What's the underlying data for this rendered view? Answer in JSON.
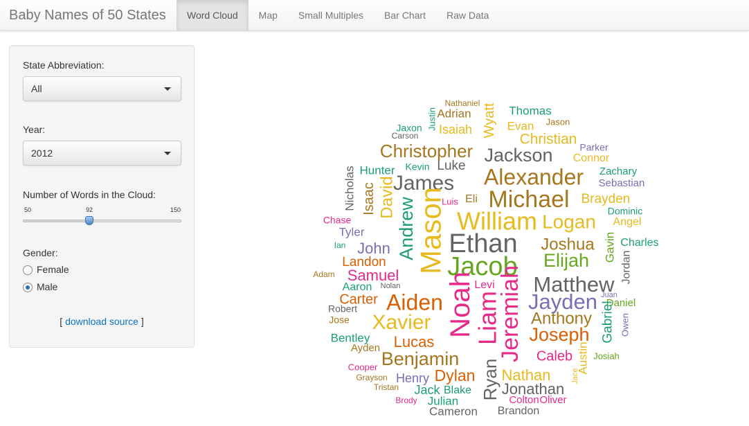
{
  "app": {
    "title": "Baby Names of 50 States"
  },
  "nav": {
    "tabs": [
      {
        "label": "Word Cloud",
        "active": true
      },
      {
        "label": "Map"
      },
      {
        "label": "Small Multiples"
      },
      {
        "label": "Bar Chart"
      },
      {
        "label": "Raw Data"
      }
    ]
  },
  "sidebar": {
    "state": {
      "label": "State Abbreviation:",
      "value": "All"
    },
    "year": {
      "label": "Year:",
      "value": "2012"
    },
    "words": {
      "label": "Number of Words in the Cloud:",
      "min": "50",
      "value": "92",
      "max": "150"
    },
    "gender": {
      "label": "Gender:",
      "options": [
        {
          "label": "Female",
          "checked": false
        },
        {
          "label": "Male",
          "checked": true
        }
      ]
    },
    "source": {
      "open": "[",
      "link": "download source",
      "close": "]"
    }
  },
  "colors": {
    "gray": "#636363",
    "gold": "#e7ba1e",
    "brown": "#a6761d",
    "orange": "#d95f02",
    "pink": "#e7298a",
    "green": "#66a61e",
    "teal": "#1b9e77",
    "purple": "#7570b3"
  },
  "cloud_words": [
    "Nathaniel",
    "Adrian",
    "Justin",
    "Isaiah",
    "Wyatt",
    "Thomas",
    "Evan",
    "Jason",
    "Christian",
    "Jaxon",
    "Carson",
    "Christopher",
    "Jackson",
    "Parker",
    "Connor",
    "Hunter",
    "Kevin",
    "Luke",
    "Alexander",
    "Zachary",
    "Sebastian",
    "Nicholas",
    "Isaac",
    "David",
    "James",
    "Andrew",
    "Mason",
    "Luis",
    "Eli",
    "Michael",
    "Brayden",
    "Dominic",
    "Angel",
    "Chase",
    "William",
    "Logan",
    "Tyler",
    "Gavin",
    "Charles",
    "Ethan",
    "Joshua",
    "Ian",
    "John",
    "Jacob",
    "Elijah",
    "Landon",
    "Jordan",
    "Adam",
    "Samuel",
    "Aaron",
    "Nolan",
    "Noah",
    "Levi",
    "Matthew",
    "Juan",
    "Carter",
    "Aiden",
    "Liam",
    "Jayden",
    "Daniel",
    "Robert",
    "Jose",
    "Xavier",
    "Anthony",
    "Gabriel",
    "Owen",
    "Bentley",
    "Jeremiah",
    "Joseph",
    "Lucas",
    "Ayden",
    "Benjamin",
    "Caleb",
    "Josiah",
    "Austin",
    "Cooper",
    "Dylan",
    "Grayson",
    "Henry",
    "Nathan",
    "Jace",
    "Tristan",
    "Ryan",
    "Jack",
    "Blake",
    "Jonathan",
    "Brody",
    "Julian",
    "Colton",
    "Oliver",
    "Cameron",
    "Brandon"
  ]
}
